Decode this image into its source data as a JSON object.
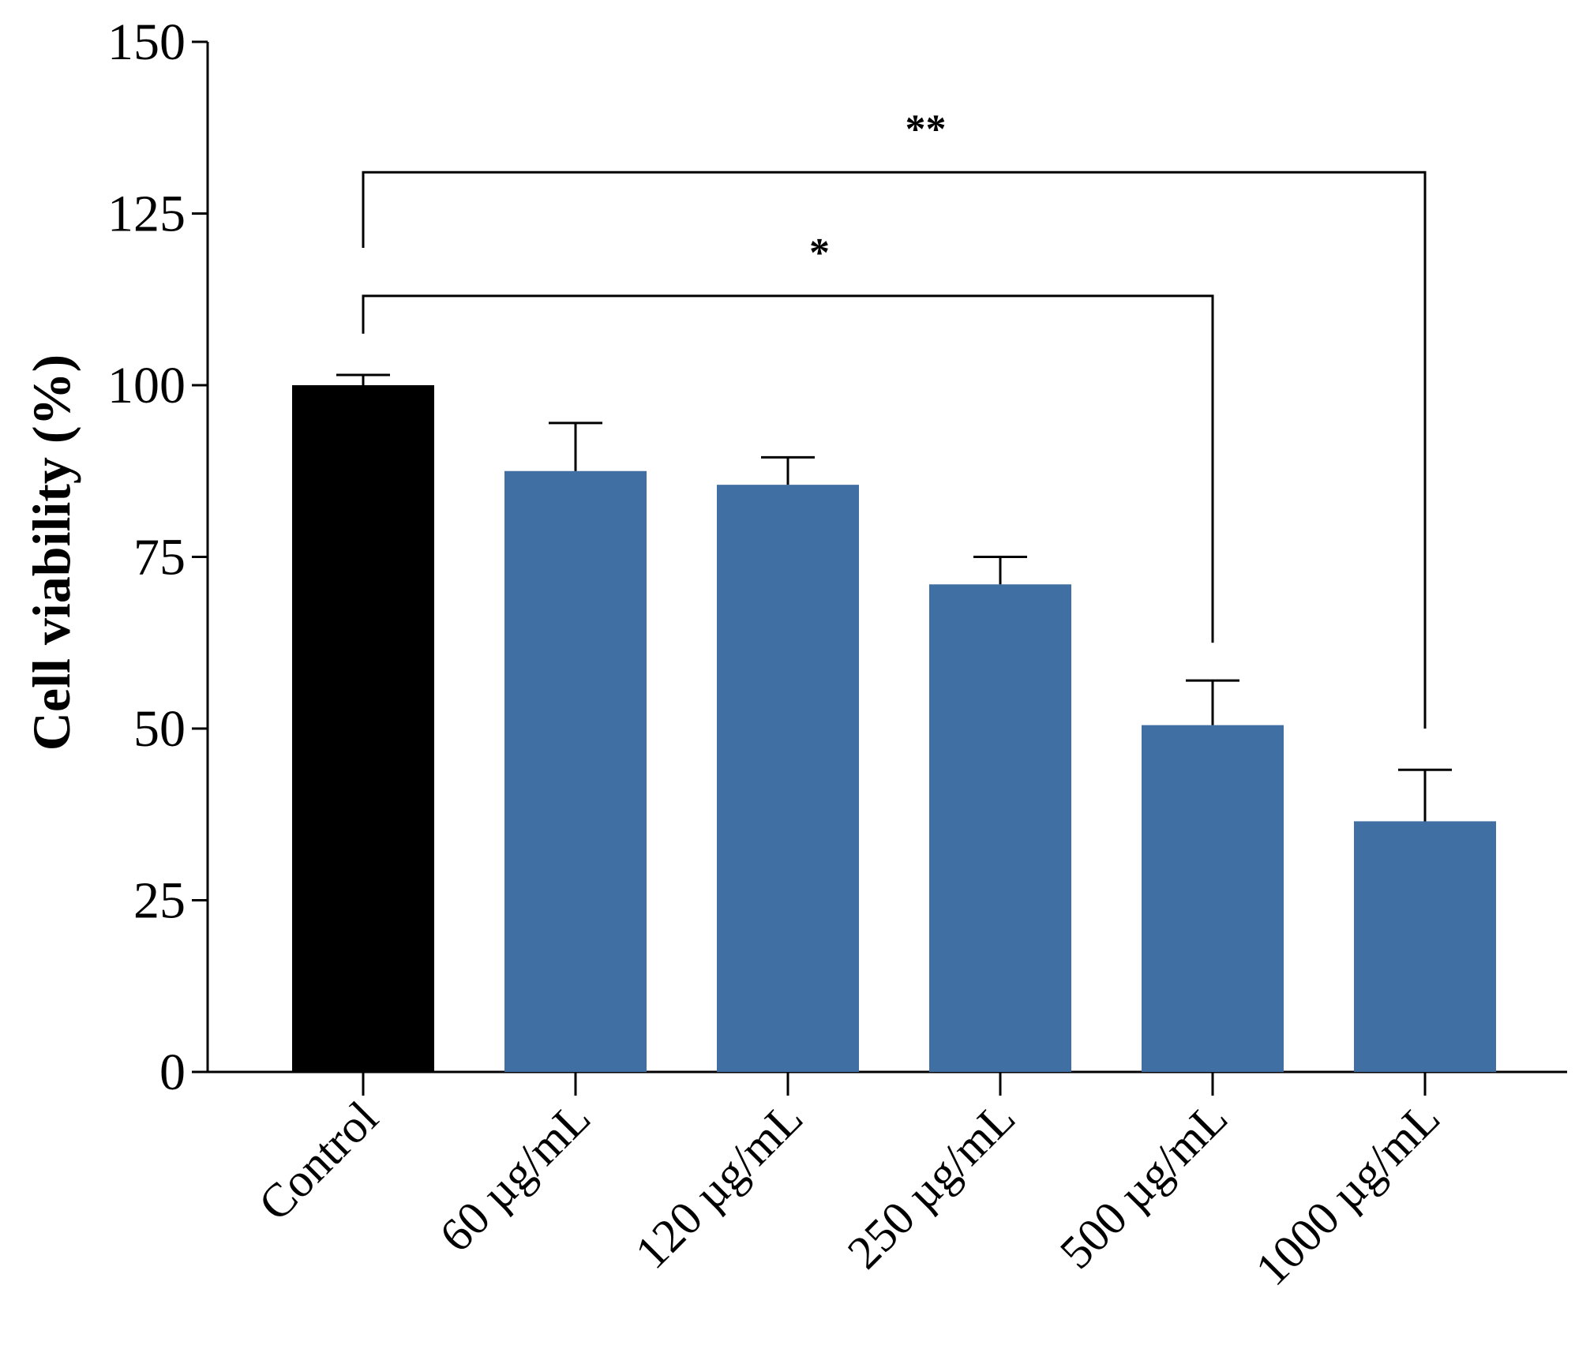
{
  "chart_data": {
    "type": "bar",
    "title": "",
    "xlabel": "",
    "ylabel": "Cell viability (%)",
    "ylim": [
      0,
      150
    ],
    "yticks": [
      0,
      25,
      50,
      75,
      100,
      125,
      150
    ],
    "categories": [
      "Control",
      "60 µg/mL",
      "120 µg/mL",
      "250 µg/mL",
      "500 µg/mL",
      "1000 µg/mL"
    ],
    "values": [
      100,
      87.5,
      85.5,
      71,
      50.5,
      36.5
    ],
    "errors": [
      1.5,
      7,
      4,
      4,
      6.5,
      7.5
    ],
    "colors": [
      "#000000",
      "#4070a3",
      "#4070a3",
      "#4070a3",
      "#4070a3",
      "#4070a3"
    ],
    "significance": [
      {
        "from": "Control",
        "to": "500 µg/mL",
        "label": "*"
      },
      {
        "from": "Control",
        "to": "1000 µg/mL",
        "label": "**"
      }
    ]
  }
}
